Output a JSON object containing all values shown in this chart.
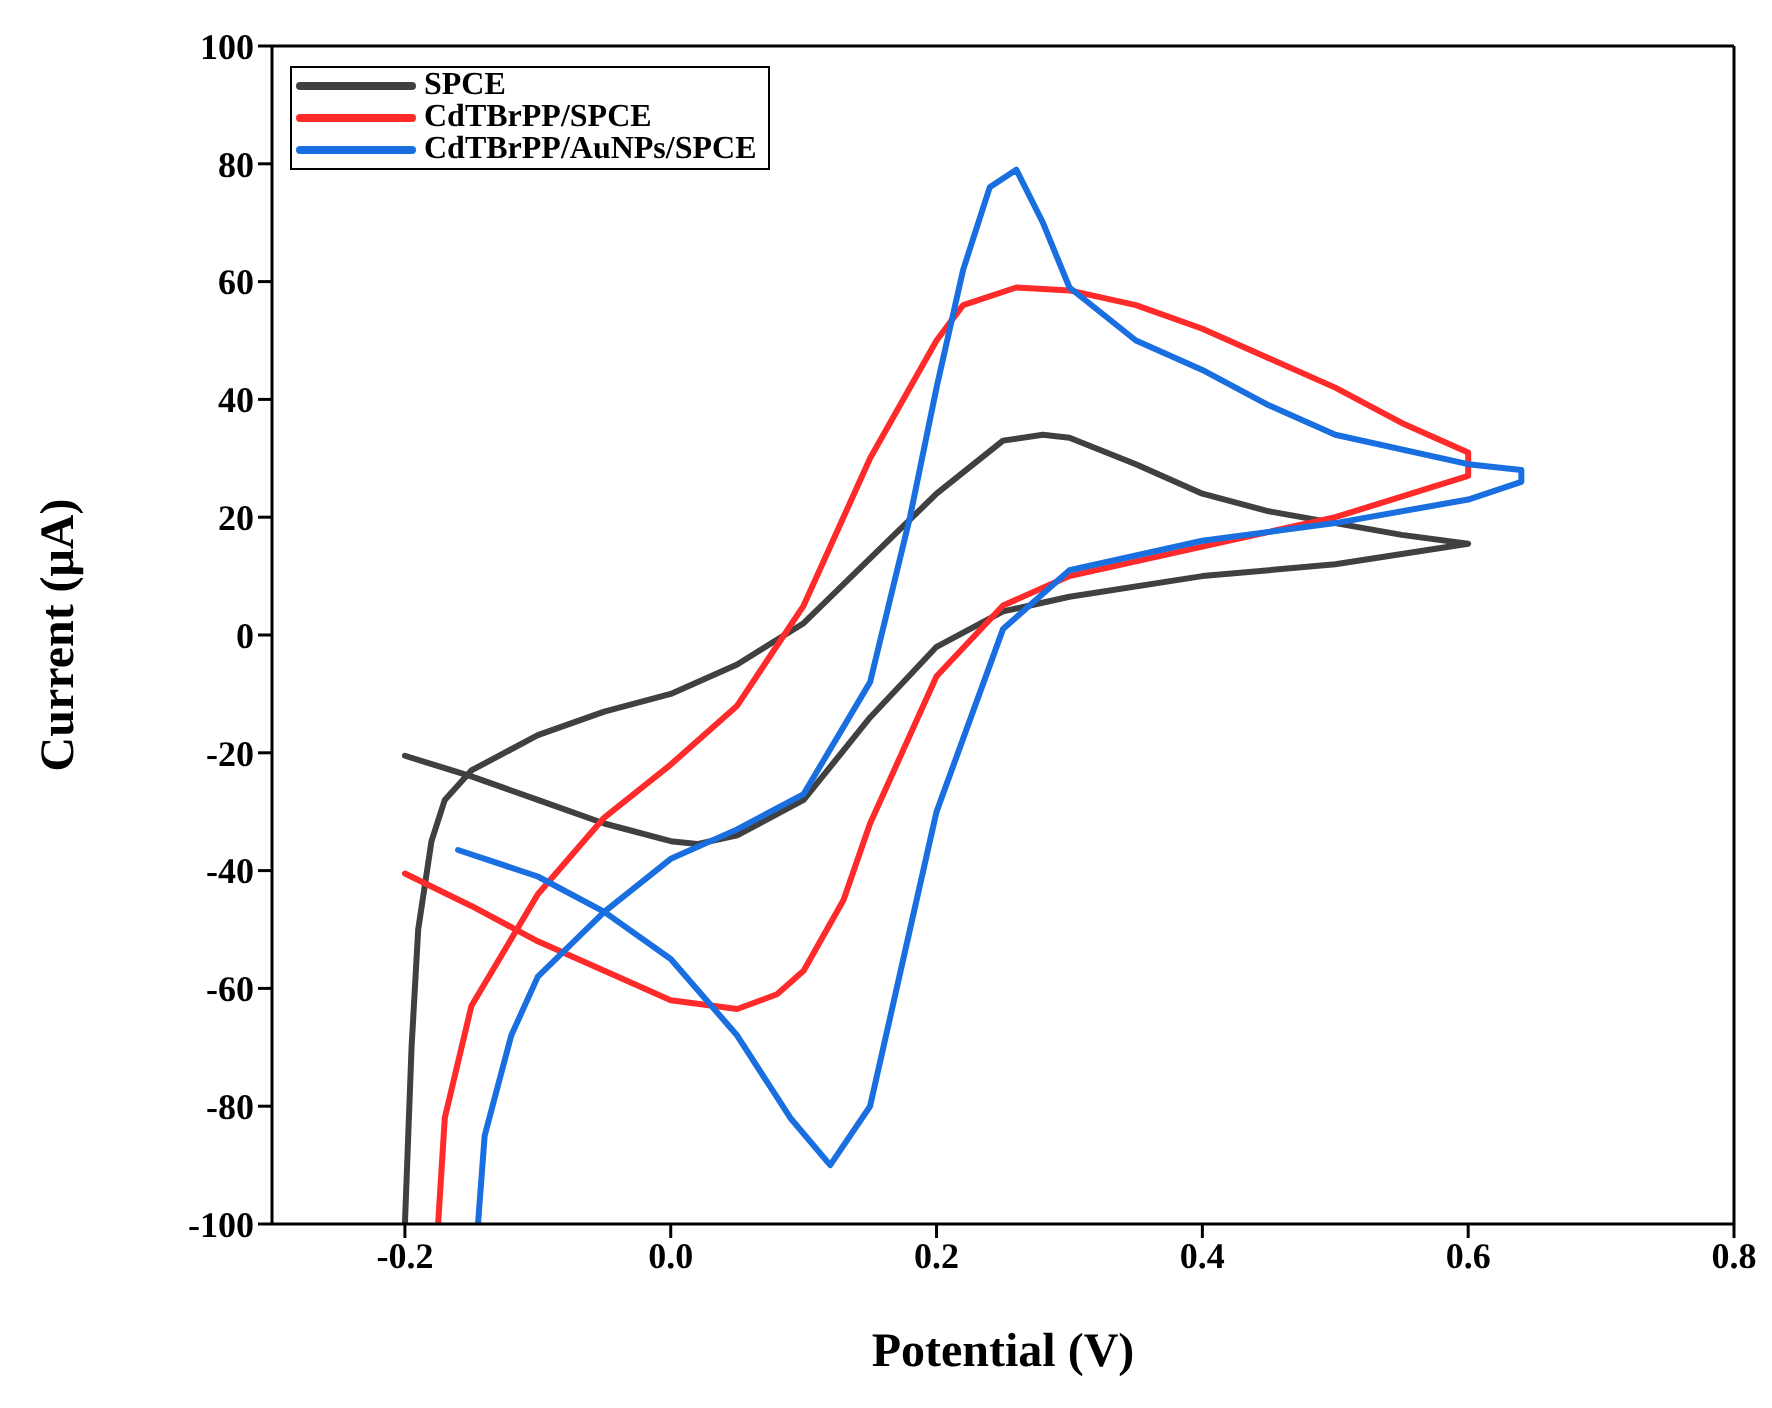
{
  "chart_data": {
    "type": "line",
    "xlabel": "Potential (V)",
    "ylabel": "Current (μA)",
    "xlim": [
      -0.3,
      0.8
    ],
    "xticks": [
      {
        "value": -0.2,
        "label": "-0.2"
      },
      {
        "value": 0,
        "label": "0.0"
      },
      {
        "value": 0.2,
        "label": "0.2"
      },
      {
        "value": 0.4,
        "label": "0.4"
      },
      {
        "value": 0.6,
        "label": "0.6"
      },
      {
        "value": 0.8,
        "label": "0.8"
      }
    ],
    "ylim": [
      -100,
      100
    ],
    "yticks": [
      -100,
      -80,
      -60,
      -40,
      -20,
      0,
      20,
      40,
      60,
      80,
      100
    ],
    "grid": false,
    "legend": "top left",
    "marker": "none",
    "line_style": "solid",
    "series": [
      {
        "name": "SPCE",
        "color": "#404040",
        "x": [
          -0.2,
          -0.15,
          -0.1,
          -0.05,
          0.0,
          0.02,
          0.05,
          0.1,
          0.15,
          0.2,
          0.25,
          0.3,
          0.4,
          0.5,
          0.6,
          0.55,
          0.5,
          0.45,
          0.4,
          0.35,
          0.3,
          0.28,
          0.25,
          0.2,
          0.15,
          0.1,
          0.05,
          0.0,
          -0.05,
          -0.1,
          -0.15,
          -0.17,
          -0.18,
          -0.19,
          -0.195,
          -0.2
        ],
        "values": [
          -20.5,
          -24,
          -28,
          -32,
          -35,
          -35.5,
          -34,
          -28,
          -14,
          -2,
          4,
          6.5,
          10,
          12,
          15.5,
          17,
          19,
          21,
          24,
          29,
          33.5,
          34,
          33,
          24,
          13,
          2,
          -5,
          -10,
          -13,
          -17,
          -23,
          -28,
          -35,
          -50,
          -70,
          -100
        ]
      },
      {
        "name": "CdTBrPP/SPCE",
        "color": "#ff2a2a",
        "x": [
          -0.2,
          -0.15,
          -0.1,
          -0.05,
          0.0,
          0.05,
          0.08,
          0.1,
          0.13,
          0.15,
          0.2,
          0.25,
          0.3,
          0.4,
          0.5,
          0.6,
          0.6,
          0.55,
          0.5,
          0.45,
          0.4,
          0.35,
          0.3,
          0.26,
          0.22,
          0.2,
          0.15,
          0.1,
          0.05,
          0.0,
          -0.05,
          -0.1,
          -0.15,
          -0.17,
          -0.175
        ],
        "values": [
          -40.5,
          -46,
          -52,
          -57,
          -62,
          -63.5,
          -61,
          -57,
          -45,
          -32,
          -7,
          5,
          10,
          15,
          20,
          27,
          31,
          36,
          42,
          47,
          52,
          56,
          58.5,
          59,
          56,
          50,
          30,
          5,
          -12,
          -22,
          -31,
          -44,
          -63,
          -82,
          -100
        ]
      },
      {
        "name": "CdTBrPP/AuNPs/SPCE",
        "color": "#1a6fe0",
        "x": [
          -0.16,
          -0.1,
          -0.05,
          0.0,
          0.05,
          0.09,
          0.12,
          0.15,
          0.18,
          0.2,
          0.25,
          0.3,
          0.4,
          0.5,
          0.6,
          0.64,
          0.64,
          0.6,
          0.5,
          0.45,
          0.4,
          0.35,
          0.3,
          0.28,
          0.26,
          0.24,
          0.22,
          0.2,
          0.18,
          0.15,
          0.1,
          0.05,
          0.0,
          -0.05,
          -0.1,
          -0.12,
          -0.14,
          -0.145
        ],
        "values": [
          -36.5,
          -41,
          -47,
          -55,
          -68,
          -82,
          -90,
          -80,
          -50,
          -30,
          1,
          11,
          16,
          19,
          23,
          26,
          28,
          29,
          34,
          39,
          45,
          50,
          59,
          70,
          79,
          76,
          62,
          42,
          20,
          -8,
          -27,
          -33,
          -38,
          -47,
          -58,
          -68,
          -85,
          -100
        ]
      }
    ]
  }
}
